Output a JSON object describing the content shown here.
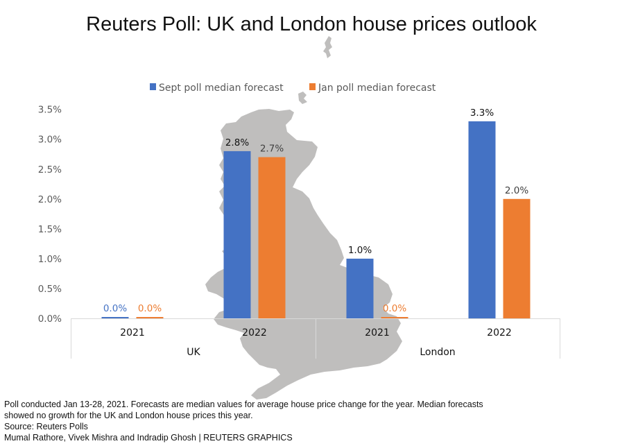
{
  "chart_data": {
    "type": "bar",
    "title": "Reuters Poll: UK and London house prices outlook",
    "xlabel": "",
    "ylabel": "",
    "ylim": [
      0,
      3.5
    ],
    "yticks": [
      0,
      0.5,
      1.0,
      1.5,
      2.0,
      2.5,
      3.0,
      3.5
    ],
    "ytick_labels": [
      "0.0%",
      "0.5%",
      "1.0%",
      "1.5%",
      "2.0%",
      "2.5%",
      "3.0%",
      "3.5%"
    ],
    "grid": false,
    "legend_position": "top-center",
    "groups": [
      {
        "label": "UK",
        "categories": [
          "2021",
          "2022"
        ]
      },
      {
        "label": "London",
        "categories": [
          "2021",
          "2022"
        ]
      }
    ],
    "categories": [
      "UK 2021",
      "UK 2022",
      "London 2021",
      "London 2022"
    ],
    "category_labels": [
      "2021",
      "2022",
      "2021",
      "2022"
    ],
    "series": [
      {
        "name": "Sept poll median forecast",
        "color": "#4472C4",
        "values": [
          0.0,
          2.8,
          1.0,
          3.3
        ],
        "data_labels": [
          "0.0%",
          "2.8%",
          "1.0%",
          "3.3%"
        ]
      },
      {
        "name": "Jan poll median forecast",
        "color": "#ED7D31",
        "values": [
          0.0,
          2.7,
          0.0,
          2.0
        ],
        "data_labels": [
          "0.0%",
          "2.7%",
          "0.0%",
          "2.0%"
        ]
      }
    ],
    "background_image": "uk-map-silhouette"
  },
  "colors": {
    "map": "#BFBEBD",
    "axis": "#D9D9D9",
    "tick_text": "#595959"
  },
  "footer": {
    "note_line1": "Poll conducted Jan 13-28, 2021. Forecasts are median values for average house price change for the year. Median forecasts",
    "note_line2": "showed no growth for the UK and London house prices this year.",
    "source": "Source: Reuters Polls",
    "credit": "Mumal Rathore, Vivek Mishra and Indradip Ghosh | REUTERS GRAPHICS"
  }
}
